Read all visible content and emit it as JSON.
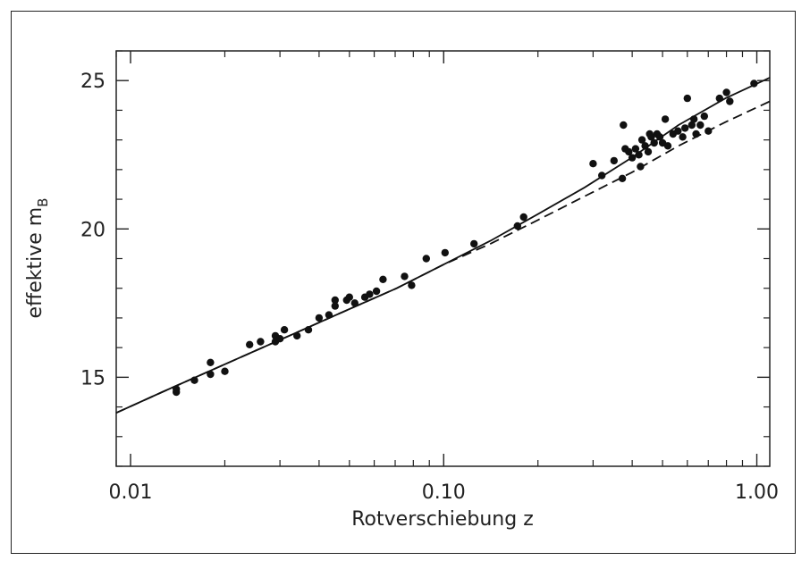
{
  "chart_data": {
    "type": "scatter",
    "title": "",
    "xlabel": "Rotverschiebung z",
    "ylabel": "effektive m",
    "ylabel_subscript": "B",
    "x_scale": "log",
    "xlim": [
      0.009,
      1.1
    ],
    "ylim": [
      12.0,
      26.0
    ],
    "x_ticks": [
      {
        "value": 0.01,
        "label": "0.01"
      },
      {
        "value": 0.1,
        "label": "0.10"
      },
      {
        "value": 1.0,
        "label": "1.00"
      }
    ],
    "y_ticks": [
      {
        "value": 15,
        "label": "15"
      },
      {
        "value": 20,
        "label": "20"
      },
      {
        "value": 25,
        "label": "25"
      }
    ],
    "grid": false,
    "legend": "none",
    "series": [
      {
        "type": "scatter",
        "points": [
          [
            0.014,
            14.5
          ],
          [
            0.014,
            14.6
          ],
          [
            0.016,
            14.9
          ],
          [
            0.018,
            15.1
          ],
          [
            0.018,
            15.5
          ],
          [
            0.02,
            15.2
          ],
          [
            0.024,
            16.1
          ],
          [
            0.026,
            16.2
          ],
          [
            0.029,
            16.2
          ],
          [
            0.029,
            16.4
          ],
          [
            0.03,
            16.3
          ],
          [
            0.031,
            16.6
          ],
          [
            0.034,
            16.4
          ],
          [
            0.037,
            16.6
          ],
          [
            0.04,
            17.0
          ],
          [
            0.043,
            17.1
          ],
          [
            0.045,
            17.4
          ],
          [
            0.045,
            17.6
          ],
          [
            0.049,
            17.6
          ],
          [
            0.05,
            17.7
          ],
          [
            0.052,
            17.5
          ],
          [
            0.056,
            17.7
          ],
          [
            0.058,
            17.8
          ],
          [
            0.061,
            17.9
          ],
          [
            0.064,
            18.3
          ],
          [
            0.075,
            18.4
          ],
          [
            0.079,
            18.1
          ],
          [
            0.088,
            19.0
          ],
          [
            0.101,
            19.2
          ],
          [
            0.125,
            19.5
          ],
          [
            0.172,
            20.1
          ],
          [
            0.18,
            20.4
          ],
          [
            0.3,
            22.2
          ],
          [
            0.32,
            21.8
          ],
          [
            0.35,
            22.3
          ],
          [
            0.372,
            21.7
          ],
          [
            0.375,
            23.5
          ],
          [
            0.38,
            22.7
          ],
          [
            0.39,
            22.6
          ],
          [
            0.4,
            22.4
          ],
          [
            0.41,
            22.7
          ],
          [
            0.42,
            22.5
          ],
          [
            0.425,
            22.1
          ],
          [
            0.43,
            23.0
          ],
          [
            0.44,
            22.8
          ],
          [
            0.45,
            22.6
          ],
          [
            0.455,
            23.2
          ],
          [
            0.46,
            23.1
          ],
          [
            0.47,
            22.9
          ],
          [
            0.48,
            23.2
          ],
          [
            0.49,
            23.1
          ],
          [
            0.5,
            22.9
          ],
          [
            0.51,
            23.7
          ],
          [
            0.52,
            22.8
          ],
          [
            0.54,
            23.2
          ],
          [
            0.56,
            23.3
          ],
          [
            0.58,
            23.1
          ],
          [
            0.59,
            23.4
          ],
          [
            0.6,
            24.4
          ],
          [
            0.62,
            23.5
          ],
          [
            0.63,
            23.7
          ],
          [
            0.64,
            23.2
          ],
          [
            0.66,
            23.5
          ],
          [
            0.68,
            23.8
          ],
          [
            0.7,
            23.3
          ],
          [
            0.76,
            24.4
          ],
          [
            0.8,
            24.6
          ],
          [
            0.82,
            24.3
          ],
          [
            0.98,
            24.9
          ]
        ]
      },
      {
        "type": "line",
        "style": "solid",
        "points": [
          [
            0.009,
            13.8
          ],
          [
            0.0126,
            14.5
          ],
          [
            0.0178,
            15.2
          ],
          [
            0.0251,
            15.9
          ],
          [
            0.0355,
            16.6
          ],
          [
            0.05,
            17.3
          ],
          [
            0.0708,
            18.0
          ],
          [
            0.1,
            18.8
          ],
          [
            0.141,
            19.6
          ],
          [
            0.2,
            20.5
          ],
          [
            0.282,
            21.4
          ],
          [
            0.398,
            22.4
          ],
          [
            0.562,
            23.5
          ],
          [
            0.794,
            24.4
          ],
          [
            1.1,
            25.1
          ]
        ]
      },
      {
        "type": "line",
        "style": "dashed",
        "points": [
          [
            0.009,
            13.8
          ],
          [
            0.0126,
            14.5
          ],
          [
            0.0178,
            15.2
          ],
          [
            0.0251,
            15.9
          ],
          [
            0.0355,
            16.6
          ],
          [
            0.05,
            17.3
          ],
          [
            0.0708,
            18.0
          ],
          [
            0.1,
            18.8
          ],
          [
            0.141,
            19.5
          ],
          [
            0.2,
            20.3
          ],
          [
            0.282,
            21.1
          ],
          [
            0.398,
            21.9
          ],
          [
            0.562,
            22.8
          ],
          [
            0.794,
            23.6
          ],
          [
            1.1,
            24.3
          ]
        ]
      }
    ]
  }
}
